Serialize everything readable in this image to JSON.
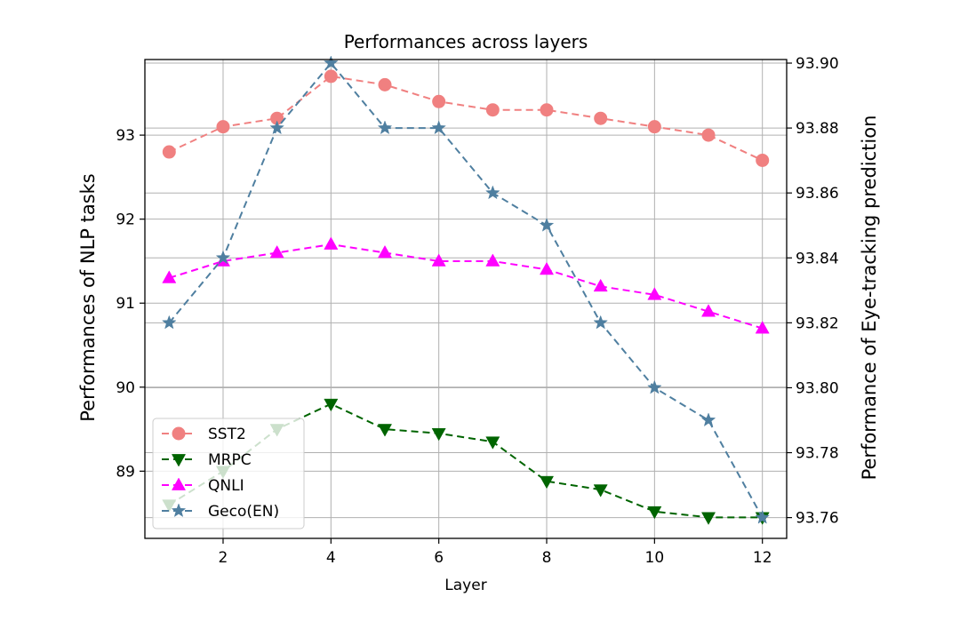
{
  "chart_data": {
    "type": "line",
    "title": "Performances across layers",
    "xlabel": "Layer",
    "ylabel_left": "Performances of NLP tasks",
    "ylabel_right": "Performance of Eye-tracking prediction",
    "x": [
      1,
      2,
      3,
      4,
      5,
      6,
      7,
      8,
      9,
      10,
      11,
      12
    ],
    "xlim": [
      0.55,
      12.45
    ],
    "xticks": [
      2,
      4,
      6,
      8,
      10,
      12
    ],
    "ylim_left": [
      88.2,
      93.9
    ],
    "yticks_left": [
      89,
      90,
      91,
      92,
      93
    ],
    "ylim_right": [
      93.7536,
      93.9011
    ],
    "yticks_right": [
      93.76,
      93.78,
      93.8,
      93.82,
      93.84,
      93.86,
      93.88,
      93.9
    ],
    "yticks_right_labels": [
      "93.76",
      "93.78",
      "93.80",
      "93.82",
      "93.84",
      "93.86",
      "93.88",
      "93.90"
    ],
    "grid": true,
    "legend_position": "lower-left",
    "series": [
      {
        "name": "SST2",
        "axis": "left",
        "color": "#f08080",
        "marker": "circle",
        "values": [
          92.8,
          93.1,
          93.2,
          93.7,
          93.6,
          93.4,
          93.3,
          93.3,
          93.2,
          93.1,
          93.0,
          92.7
        ]
      },
      {
        "name": "MRPC",
        "axis": "left",
        "color": "#006400",
        "marker": "triangle-down",
        "values": [
          88.6,
          89.0,
          89.5,
          89.8,
          89.5,
          89.45,
          89.35,
          88.88,
          88.78,
          88.52,
          88.45,
          88.45
        ]
      },
      {
        "name": "QNLI",
        "axis": "left",
        "color": "#ff00ff",
        "marker": "triangle-up",
        "values": [
          91.3,
          91.5,
          91.6,
          91.7,
          91.6,
          91.5,
          91.5,
          91.4,
          91.2,
          91.1,
          90.9,
          90.7
        ]
      },
      {
        "name": "Geco(EN)",
        "axis": "right",
        "color": "#4f7fa0",
        "marker": "star",
        "values": [
          93.82,
          93.84,
          93.88,
          93.9,
          93.88,
          93.88,
          93.86,
          93.85,
          93.82,
          93.8,
          93.79,
          93.76
        ]
      }
    ]
  }
}
